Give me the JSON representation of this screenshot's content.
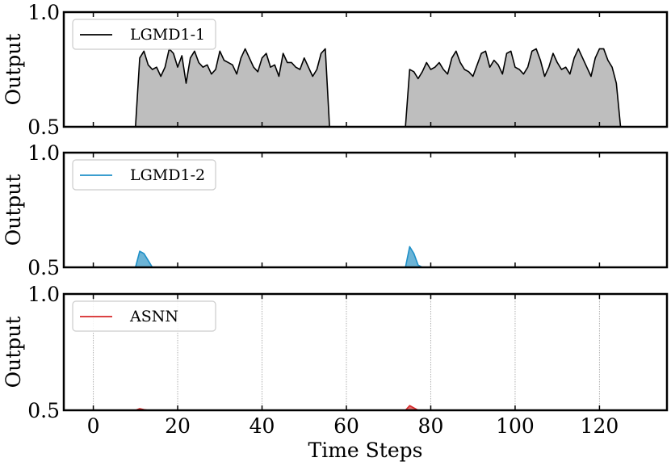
{
  "chart_data": [
    {
      "type": "area",
      "series": [
        {
          "name": "LGMD1-1",
          "color": "#000000",
          "fill": "#bebebe",
          "x": [
            0,
            1,
            2,
            3,
            4,
            5,
            6,
            7,
            8,
            9,
            10,
            11,
            12,
            13,
            14,
            15,
            16,
            17,
            18,
            19,
            20,
            21,
            22,
            23,
            24,
            25,
            26,
            27,
            28,
            29,
            30,
            31,
            32,
            33,
            34,
            35,
            36,
            37,
            38,
            39,
            40,
            41,
            42,
            43,
            44,
            45,
            46,
            47,
            48,
            49,
            50,
            51,
            52,
            53,
            54,
            55,
            56,
            57,
            58,
            59,
            60,
            61,
            62,
            63,
            64,
            65,
            66,
            67,
            68,
            69,
            70,
            71,
            72,
            73,
            74,
            75,
            76,
            77,
            78,
            79,
            80,
            81,
            82,
            83,
            84,
            85,
            86,
            87,
            88,
            89,
            90,
            91,
            92,
            93,
            94,
            95,
            96,
            97,
            98,
            99,
            100,
            101,
            102,
            103,
            104,
            105,
            106,
            107,
            108,
            109,
            110,
            111,
            112,
            113,
            114,
            115,
            116,
            117,
            118,
            119,
            120,
            121,
            122,
            123,
            124,
            125,
            126,
            127,
            128,
            129
          ],
          "values": [
            0.5,
            0.5,
            0.5,
            0.5,
            0.5,
            0.5,
            0.5,
            0.5,
            0.5,
            0.5,
            0.5,
            0.8,
            0.83,
            0.77,
            0.75,
            0.76,
            0.72,
            0.76,
            0.84,
            0.82,
            0.76,
            0.81,
            0.69,
            0.8,
            0.83,
            0.78,
            0.76,
            0.77,
            0.73,
            0.75,
            0.83,
            0.79,
            0.78,
            0.77,
            0.73,
            0.8,
            0.84,
            0.8,
            0.76,
            0.74,
            0.8,
            0.82,
            0.76,
            0.77,
            0.72,
            0.82,
            0.78,
            0.78,
            0.76,
            0.75,
            0.8,
            0.76,
            0.72,
            0.75,
            0.82,
            0.84,
            0.5,
            0.5,
            0.5,
            0.5,
            0.5,
            0.5,
            0.5,
            0.5,
            0.5,
            0.5,
            0.5,
            0.5,
            0.5,
            0.5,
            0.5,
            0.5,
            0.5,
            0.5,
            0.5,
            0.75,
            0.74,
            0.71,
            0.74,
            0.78,
            0.75,
            0.76,
            0.78,
            0.75,
            0.73,
            0.8,
            0.83,
            0.78,
            0.75,
            0.74,
            0.72,
            0.77,
            0.82,
            0.83,
            0.76,
            0.79,
            0.77,
            0.73,
            0.82,
            0.83,
            0.76,
            0.75,
            0.73,
            0.76,
            0.83,
            0.84,
            0.79,
            0.72,
            0.76,
            0.82,
            0.78,
            0.75,
            0.76,
            0.73,
            0.8,
            0.84,
            0.8,
            0.76,
            0.72,
            0.8,
            0.84,
            0.84,
            0.79,
            0.76,
            0.69,
            0.5,
            0.5,
            0.5,
            0.5,
            0.5
          ]
        }
      ],
      "xlabel": "",
      "ylabel": "Output",
      "xlim": [
        -7,
        136
      ],
      "ylim": [
        0.5,
        1.0
      ],
      "yticks": [
        0.5,
        1.0
      ],
      "ytick_labels": [
        "0.5",
        "1.0"
      ],
      "legend_location": "upper-left",
      "grid": false
    },
    {
      "type": "area",
      "series": [
        {
          "name": "LGMD1-2",
          "color": "#1f90c8",
          "fill": "#6cb4d6",
          "x": [
            0,
            1,
            2,
            3,
            4,
            5,
            6,
            7,
            8,
            9,
            10,
            11,
            12,
            13,
            14,
            15,
            16,
            17,
            18,
            19,
            20,
            21,
            22,
            23,
            24,
            25,
            26,
            27,
            28,
            29,
            30,
            31,
            32,
            33,
            34,
            35,
            36,
            37,
            38,
            39,
            40,
            41,
            42,
            43,
            44,
            45,
            46,
            47,
            48,
            49,
            50,
            51,
            52,
            53,
            54,
            55,
            56,
            57,
            58,
            59,
            60,
            61,
            62,
            63,
            64,
            65,
            66,
            67,
            68,
            69,
            70,
            71,
            72,
            73,
            74,
            75,
            76,
            77,
            78,
            79,
            80,
            81,
            82,
            83,
            84,
            85,
            86,
            87,
            88,
            89,
            90,
            91,
            92,
            93,
            94,
            95,
            96,
            97,
            98,
            99,
            100,
            101,
            102,
            103,
            104,
            105,
            106,
            107,
            108,
            109,
            110,
            111,
            112,
            113,
            114,
            115,
            116,
            117,
            118,
            119,
            120,
            121,
            122,
            123,
            124,
            125,
            126,
            127,
            128,
            129
          ],
          "values": [
            0.5,
            0.5,
            0.5,
            0.5,
            0.5,
            0.5,
            0.5,
            0.5,
            0.5,
            0.5,
            0.5,
            0.57,
            0.56,
            0.53,
            0.5,
            0.5,
            0.5,
            0.5,
            0.5,
            0.5,
            0.5,
            0.5,
            0.5,
            0.5,
            0.5,
            0.5,
            0.5,
            0.5,
            0.5,
            0.5,
            0.5,
            0.5,
            0.5,
            0.5,
            0.5,
            0.5,
            0.5,
            0.5,
            0.5,
            0.5,
            0.5,
            0.5,
            0.5,
            0.5,
            0.5,
            0.5,
            0.5,
            0.5,
            0.5,
            0.5,
            0.5,
            0.5,
            0.5,
            0.5,
            0.5,
            0.5,
            0.5,
            0.5,
            0.5,
            0.5,
            0.5,
            0.5,
            0.5,
            0.5,
            0.5,
            0.5,
            0.5,
            0.5,
            0.5,
            0.5,
            0.5,
            0.5,
            0.5,
            0.5,
            0.5,
            0.59,
            0.56,
            0.51,
            0.5,
            0.5,
            0.5,
            0.5,
            0.5,
            0.5,
            0.5,
            0.5,
            0.5,
            0.5,
            0.5,
            0.5,
            0.5,
            0.5,
            0.5,
            0.5,
            0.5,
            0.5,
            0.5,
            0.5,
            0.5,
            0.5,
            0.5,
            0.5,
            0.5,
            0.5,
            0.5,
            0.5,
            0.5,
            0.5,
            0.5,
            0.5,
            0.5,
            0.5,
            0.5,
            0.5,
            0.5,
            0.5,
            0.5,
            0.5,
            0.5,
            0.5,
            0.5,
            0.5,
            0.5,
            0.5,
            0.5,
            0.5,
            0.5,
            0.5,
            0.5,
            0.5
          ]
        }
      ],
      "xlabel": "",
      "ylabel": "Output",
      "xlim": [
        -7,
        136
      ],
      "ylim": [
        0.5,
        1.0
      ],
      "yticks": [
        0.5,
        1.0
      ],
      "ytick_labels": [
        "0.5",
        "1.0"
      ],
      "legend_location": "upper-left",
      "grid": false
    },
    {
      "type": "area",
      "series": [
        {
          "name": "ASNN",
          "color": "#d62728",
          "fill": "#e07070",
          "x": [
            0,
            1,
            2,
            3,
            4,
            5,
            6,
            7,
            8,
            9,
            10,
            11,
            12,
            13,
            14,
            15,
            16,
            17,
            18,
            19,
            20,
            21,
            22,
            23,
            24,
            25,
            26,
            27,
            28,
            29,
            30,
            31,
            32,
            33,
            34,
            35,
            36,
            37,
            38,
            39,
            40,
            41,
            42,
            43,
            44,
            45,
            46,
            47,
            48,
            49,
            50,
            51,
            52,
            53,
            54,
            55,
            56,
            57,
            58,
            59,
            60,
            61,
            62,
            63,
            64,
            65,
            66,
            67,
            68,
            69,
            70,
            71,
            72,
            73,
            74,
            75,
            76,
            77,
            78,
            79,
            80,
            81,
            82,
            83,
            84,
            85,
            86,
            87,
            88,
            89,
            90,
            91,
            92,
            93,
            94,
            95,
            96,
            97,
            98,
            99,
            100,
            101,
            102,
            103,
            104,
            105,
            106,
            107,
            108,
            109,
            110,
            111,
            112,
            113,
            114,
            115,
            116,
            117,
            118,
            119,
            120,
            121,
            122,
            123,
            124,
            125,
            126,
            127,
            128,
            129
          ],
          "values": [
            0.5,
            0.5,
            0.5,
            0.5,
            0.5,
            0.5,
            0.5,
            0.5,
            0.5,
            0.5,
            0.5,
            0.507,
            0.503,
            0.5,
            0.5,
            0.5,
            0.5,
            0.5,
            0.5,
            0.5,
            0.5,
            0.5,
            0.5,
            0.5,
            0.5,
            0.5,
            0.5,
            0.5,
            0.5,
            0.5,
            0.5,
            0.5,
            0.5,
            0.5,
            0.5,
            0.5,
            0.5,
            0.5,
            0.5,
            0.5,
            0.5,
            0.5,
            0.5,
            0.5,
            0.5,
            0.5,
            0.5,
            0.5,
            0.5,
            0.5,
            0.5,
            0.5,
            0.5,
            0.5,
            0.5,
            0.5,
            0.5,
            0.5,
            0.5,
            0.5,
            0.5,
            0.5,
            0.5,
            0.5,
            0.5,
            0.5,
            0.5,
            0.5,
            0.5,
            0.5,
            0.5,
            0.5,
            0.5,
            0.5,
            0.5,
            0.52,
            0.51,
            0.5,
            0.5,
            0.5,
            0.5,
            0.5,
            0.5,
            0.5,
            0.5,
            0.5,
            0.5,
            0.5,
            0.5,
            0.5,
            0.5,
            0.5,
            0.5,
            0.5,
            0.5,
            0.5,
            0.5,
            0.5,
            0.5,
            0.5,
            0.5,
            0.5,
            0.5,
            0.5,
            0.5,
            0.5,
            0.5,
            0.5,
            0.5,
            0.5,
            0.5,
            0.5,
            0.5,
            0.5,
            0.5,
            0.5,
            0.5,
            0.5,
            0.5,
            0.5,
            0.5,
            0.5,
            0.5,
            0.5,
            0.5,
            0.5,
            0.5,
            0.5,
            0.5,
            0.5
          ]
        }
      ],
      "xlabel": "Time Steps",
      "ylabel": "Output",
      "xlim": [
        -7,
        136
      ],
      "ylim": [
        0.5,
        1.0
      ],
      "xticks": [
        0,
        20,
        40,
        60,
        80,
        100,
        120
      ],
      "xtick_labels": [
        "0",
        "20",
        "40",
        "60",
        "80",
        "100",
        "120"
      ],
      "yticks": [
        0.5,
        1.0
      ],
      "ytick_labels": [
        "0.5",
        "1.0"
      ],
      "legend_location": "upper-left",
      "grid": true
    }
  ]
}
